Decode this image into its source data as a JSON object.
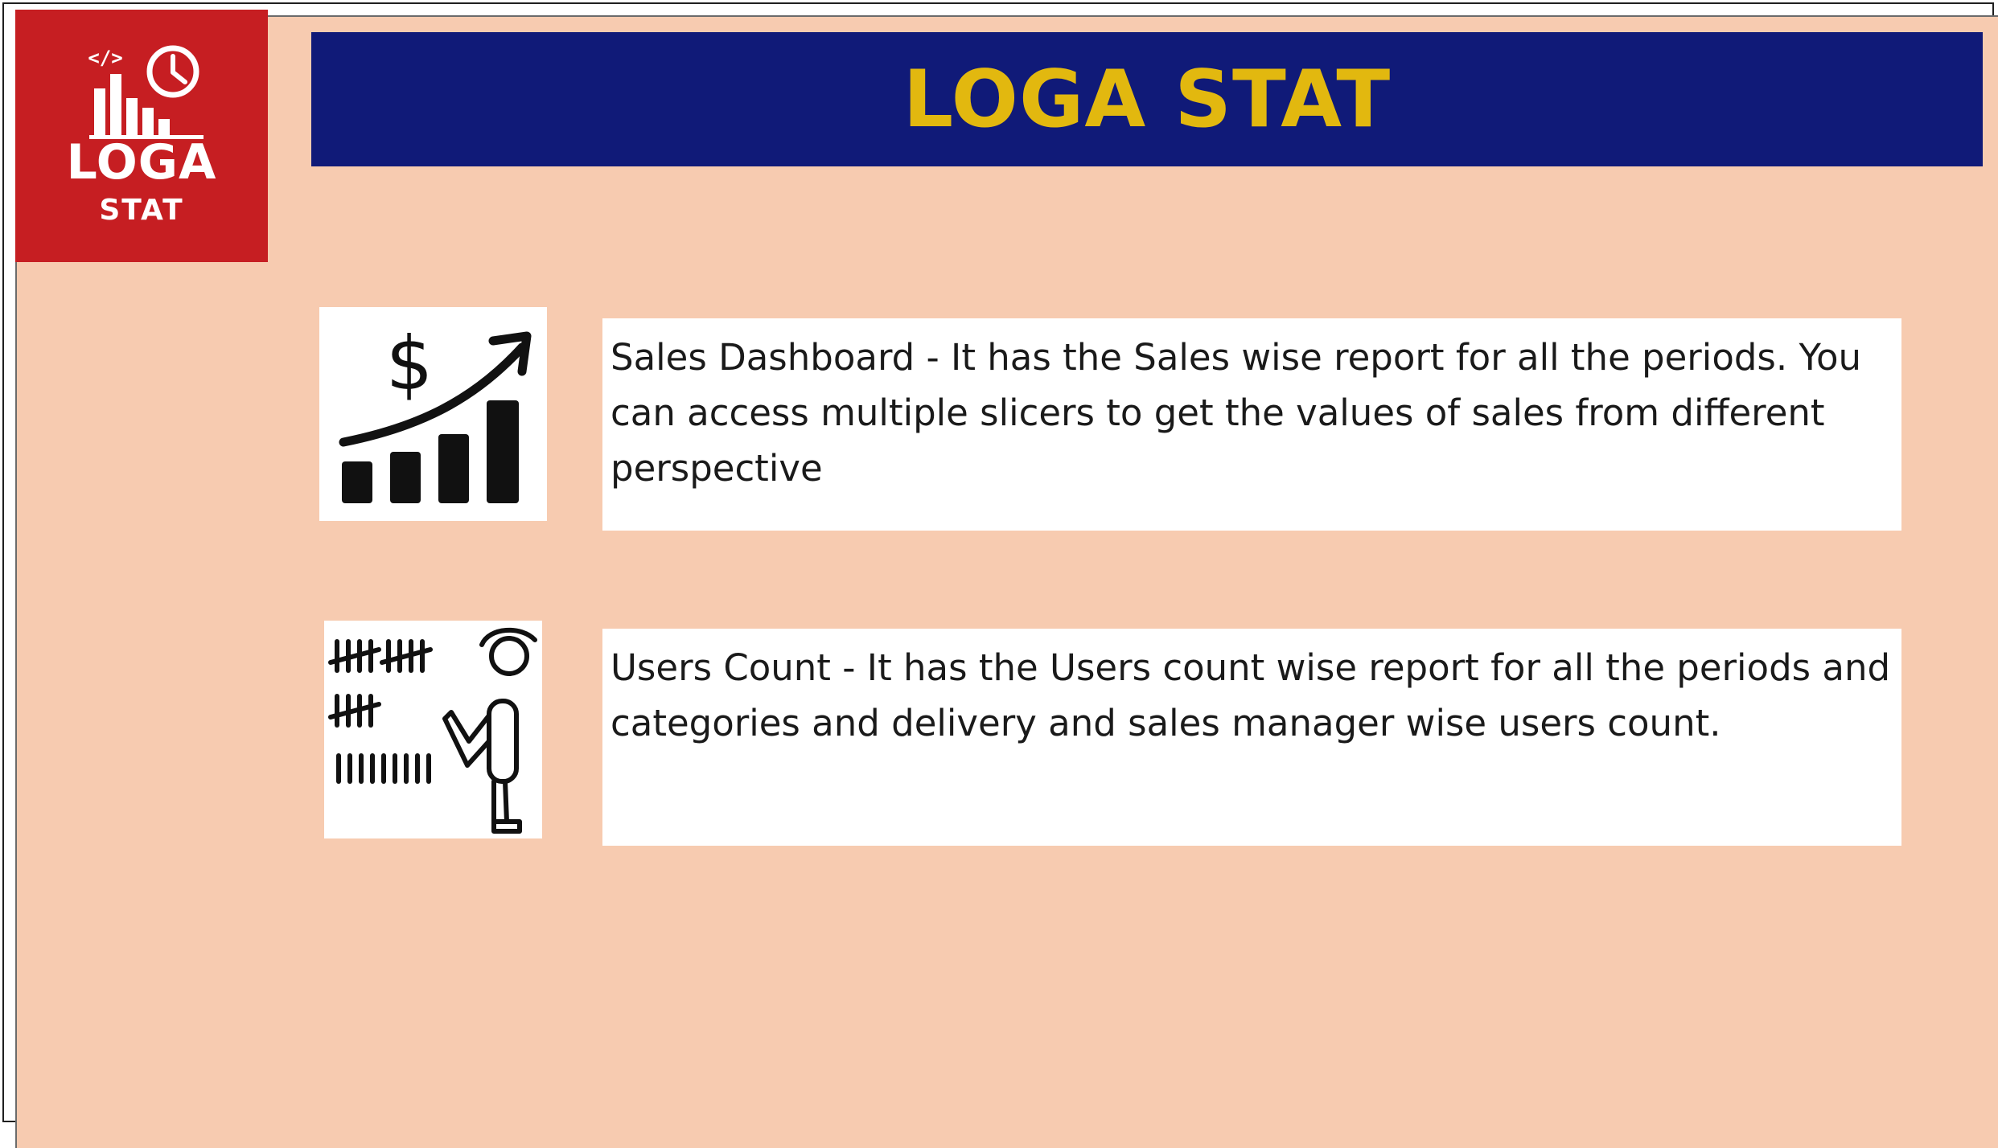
{
  "logo": {
    "icon": "bar-chart-clock-icon",
    "code_glyph": "</>",
    "line1": "LOGA",
    "line2": "STAT",
    "color": "#c61e22"
  },
  "header": {
    "title": "LOGA STAT",
    "background": "#101a78",
    "title_color": "#e2b80f"
  },
  "page": {
    "background": "#f7cbb0"
  },
  "items": [
    {
      "icon": "sales-growth-icon",
      "icon_symbol": "$",
      "description": "Sales Dashboard - It has the Sales wise report for all the periods. You can access multiple slicers to get the values of sales from different perspective"
    },
    {
      "icon": "tally-counting-person-icon",
      "description": "Users Count - It has the Users count wise report for all the periods and categories and delivery and sales manager wise users count."
    }
  ]
}
